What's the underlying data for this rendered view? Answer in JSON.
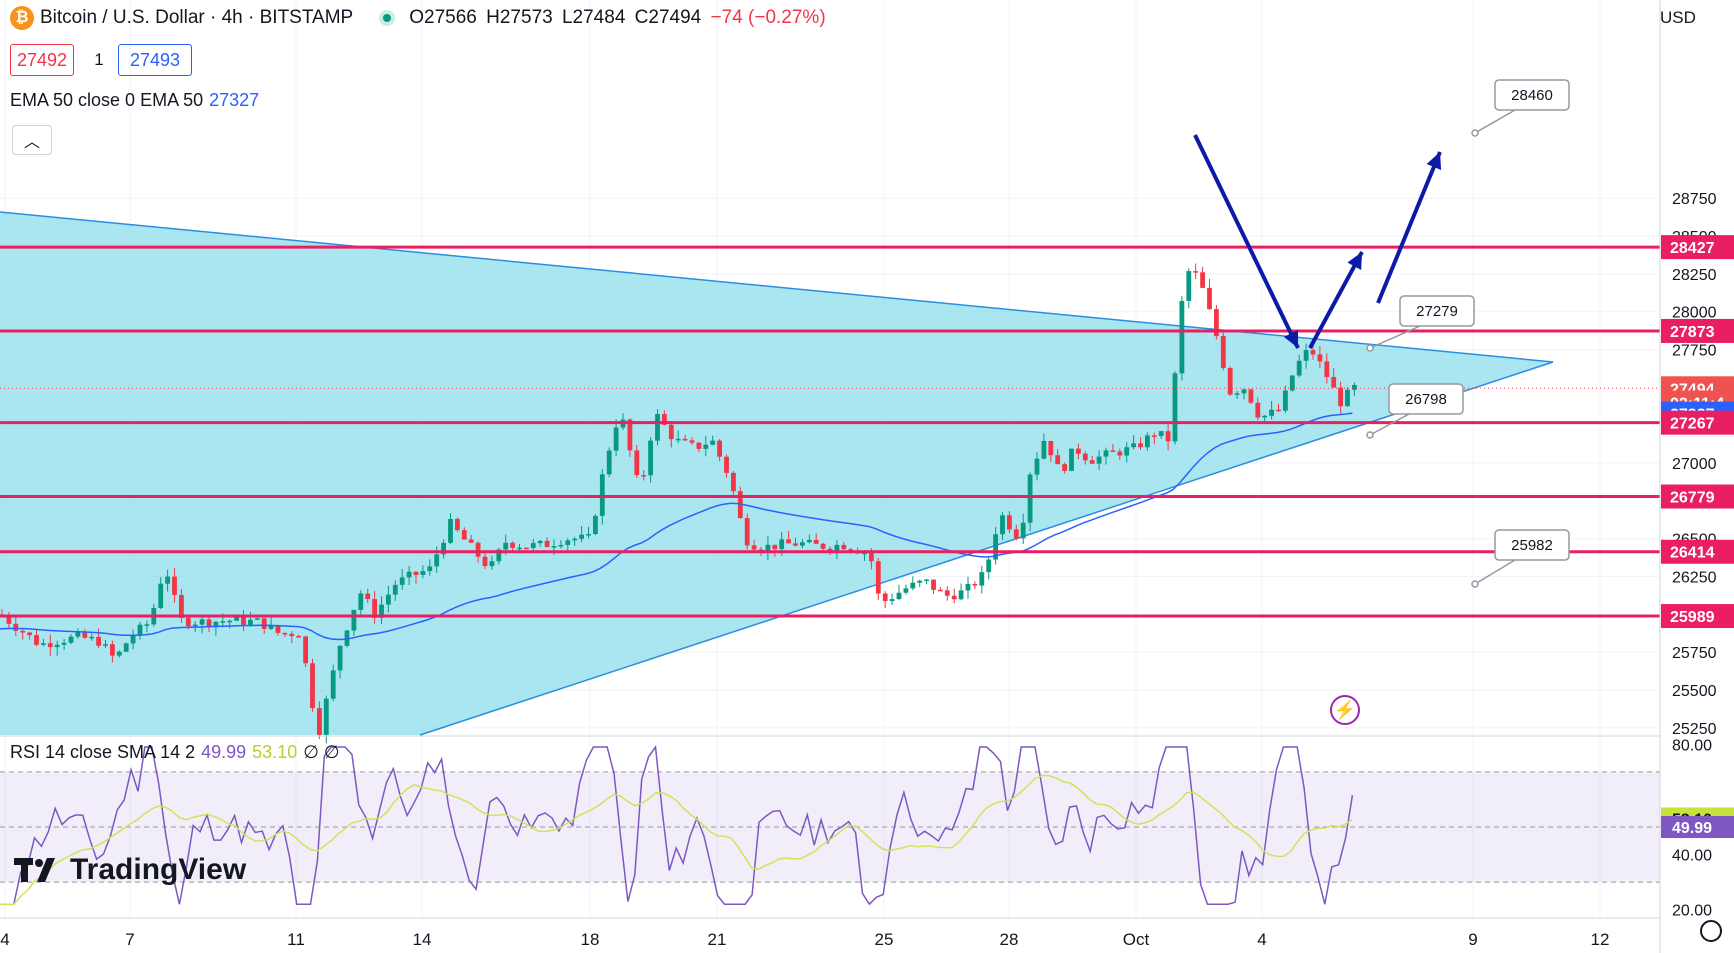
{
  "header": {
    "symbol": "Bitcoin / U.S. Dollar · 4h · BITSTAMP",
    "btc_glyph": "₿",
    "ohlc": {
      "o": "O27566",
      "h": "H27573",
      "l": "L27484",
      "c": "C27494",
      "chg": "−74 (−0.27%)"
    }
  },
  "trade": {
    "sell": "27492",
    "qty": "1",
    "buy": "27493"
  },
  "ema_legend": {
    "label": "EMA 50 close 0 EMA 50",
    "value": "27327"
  },
  "rsi_legend": {
    "label": "RSI 14 close SMA 14 2",
    "rsi": "49.99",
    "sma": "53.10",
    "extra": "∅ ∅"
  },
  "currency": "USD",
  "logo": "TradingView",
  "chart_data": {
    "type": "candlestick",
    "timeframe": "4h",
    "x_ticks": [
      "4",
      "7",
      "11",
      "14",
      "18",
      "21",
      "25",
      "28",
      "Oct",
      "4",
      "9",
      "12"
    ],
    "y_ticks": [
      "28750",
      "28500",
      "28250",
      "28000",
      "27750",
      "27000",
      "26500",
      "26250",
      "25750",
      "25500",
      "25250"
    ],
    "ylim": [
      25170,
      29300
    ],
    "price_labels": [
      {
        "text": "28427",
        "value": 28427,
        "color": "#e91e63"
      },
      {
        "text": "27873",
        "value": 27873,
        "color": "#e91e63"
      },
      {
        "text": "27494",
        "value": 27494,
        "color": "#ef5350"
      },
      {
        "text": "02:11:4",
        "value": 27400,
        "color": "#ef5350"
      },
      {
        "text": "27327",
        "value": 27327,
        "color": "#2962ff"
      },
      {
        "text": "27267",
        "value": 27267,
        "color": "#e91e63"
      },
      {
        "text": "26779",
        "value": 26779,
        "color": "#e91e63"
      },
      {
        "text": "26414",
        "value": 26414,
        "color": "#e91e63"
      },
      {
        "text": "25989",
        "value": 25989,
        "color": "#e91e63"
      }
    ],
    "horizontal_levels": [
      28427,
      27873,
      27267,
      26779,
      26414,
      25989
    ],
    "callouts": [
      "28460",
      "27279",
      "26798",
      "25982"
    ],
    "rsi": {
      "y_ticks": [
        "80.00",
        "40.00",
        "20.00"
      ],
      "ylim": [
        17,
        83
      ],
      "band": [
        70,
        30
      ],
      "mid": 50,
      "value_labels": [
        {
          "text": "53.10",
          "value": 53.1,
          "color": "#c6e23c"
        },
        {
          "text": "49.99",
          "value": 49.99,
          "color": "#7e57c2"
        }
      ]
    }
  }
}
